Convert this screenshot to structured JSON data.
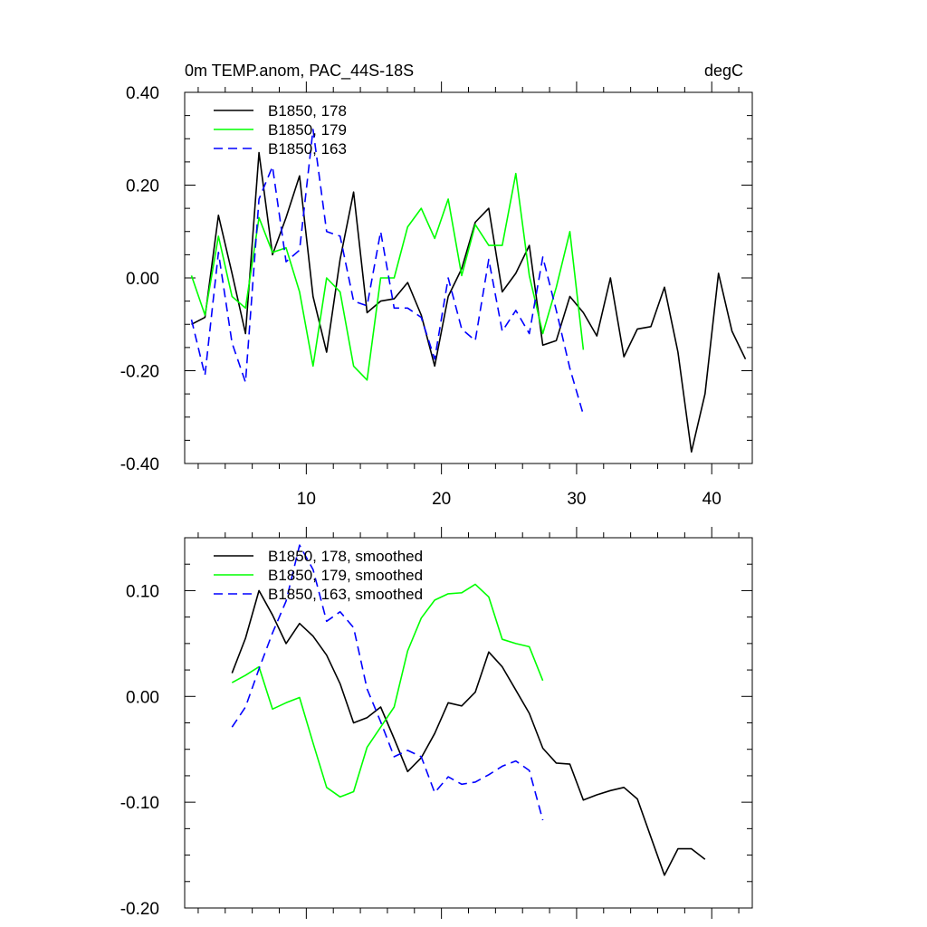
{
  "title_left": "0m TEMP.anom, PAC_44S-18S",
  "title_right": "degC",
  "chart_data": [
    {
      "type": "line",
      "xlim": [
        1,
        43
      ],
      "ylim": [
        -0.4,
        0.4
      ],
      "x_ticks": [
        10,
        20,
        30,
        40
      ],
      "x_tick_labels": [
        "10",
        "20",
        "30",
        "40"
      ],
      "y_ticks": [
        -0.4,
        -0.2,
        0.0,
        0.2,
        0.4
      ],
      "y_tick_labels": [
        "-0.40",
        "-0.20",
        "0.00",
        "0.20",
        "0.40"
      ],
      "legend_position": "top-left",
      "series": [
        {
          "name": "B1850, 178",
          "color": "#000000",
          "dash": "solid",
          "x": [
            1.5,
            2.5,
            3.5,
            4.5,
            5.5,
            6.5,
            7.5,
            8.5,
            9.5,
            10.5,
            11.5,
            12.5,
            13.5,
            14.5,
            15.5,
            16.5,
            17.5,
            18.5,
            19.5,
            20.5,
            21.5,
            22.5,
            23.5,
            24.5,
            25.5,
            26.5,
            27.5,
            28.5,
            29.5,
            30.5,
            31.5,
            32.5,
            33.5,
            34.5,
            35.5,
            36.5,
            37.5,
            38.5,
            39.5,
            40.5,
            41.5,
            42.5
          ],
          "values": [
            -0.1,
            -0.085,
            0.135,
            0.01,
            -0.12,
            0.27,
            0.05,
            0.13,
            0.22,
            -0.04,
            -0.16,
            0.04,
            0.185,
            -0.075,
            -0.05,
            -0.045,
            -0.01,
            -0.08,
            -0.19,
            -0.04,
            0.02,
            0.12,
            0.15,
            -0.03,
            0.01,
            0.07,
            -0.145,
            -0.135,
            -0.04,
            -0.075,
            -0.125,
            0.0,
            -0.17,
            -0.11,
            -0.105,
            -0.02,
            -0.16,
            -0.375,
            -0.25,
            0.01,
            -0.115,
            -0.175
          ]
        },
        {
          "name": "B1850, 179",
          "color": "#00ff00",
          "dash": "solid",
          "x": [
            1.5,
            2.5,
            3.5,
            4.5,
            5.5,
            6.5,
            7.5,
            8.5,
            9.5,
            10.5,
            11.5,
            12.5,
            13.5,
            14.5,
            15.5,
            16.5,
            17.5,
            18.5,
            19.5,
            20.5,
            21.5,
            22.5,
            23.5,
            24.5,
            25.5,
            26.5,
            27.5,
            28.5,
            29.5,
            30.5
          ],
          "values": [
            0.005,
            -0.08,
            0.09,
            -0.04,
            -0.065,
            0.13,
            0.055,
            0.065,
            -0.03,
            -0.19,
            0.0,
            -0.03,
            -0.19,
            -0.22,
            0.0,
            0.0,
            0.11,
            0.15,
            0.085,
            0.17,
            0.005,
            0.115,
            0.07,
            0.07,
            0.225,
            0.005,
            -0.12,
            -0.02,
            0.1,
            -0.155
          ]
        },
        {
          "name": "B1850, 163",
          "color": "#0000ff",
          "dash": "dashed",
          "x": [
            1.5,
            2.5,
            3.5,
            4.5,
            5.5,
            6.5,
            7.5,
            8.5,
            9.5,
            10.5,
            11.5,
            12.5,
            13.5,
            14.5,
            15.5,
            16.5,
            17.5,
            18.5,
            19.5,
            20.5,
            21.5,
            22.5,
            23.5,
            24.5,
            25.5,
            26.5,
            27.5,
            28.5,
            29.5,
            30.5
          ],
          "values": [
            -0.09,
            -0.21,
            0.055,
            -0.14,
            -0.225,
            0.17,
            0.24,
            0.035,
            0.06,
            0.32,
            0.1,
            0.09,
            -0.05,
            -0.06,
            0.1,
            -0.065,
            -0.065,
            -0.085,
            -0.175,
            0.0,
            -0.11,
            -0.135,
            0.04,
            -0.115,
            -0.07,
            -0.12,
            0.045,
            -0.07,
            -0.195,
            -0.295
          ]
        }
      ]
    },
    {
      "type": "line",
      "xlim": [
        1,
        43
      ],
      "ylim": [
        -0.2,
        0.15
      ],
      "x_ticks": [
        10,
        20,
        30,
        40
      ],
      "x_tick_labels": [],
      "y_ticks": [
        -0.2,
        -0.1,
        0.0,
        0.1
      ],
      "y_tick_labels": [
        "-0.20",
        "-0.10",
        "0.00",
        "0.10"
      ],
      "legend_position": "top-left",
      "series": [
        {
          "name": "B1850, 178, smoothed",
          "color": "#000000",
          "dash": "solid",
          "x": [
            4.5,
            5.5,
            6.5,
            7.5,
            8.5,
            9.5,
            10.5,
            11.5,
            12.5,
            13.5,
            14.5,
            15.5,
            16.5,
            17.5,
            18.5,
            19.5,
            20.5,
            21.5,
            22.5,
            23.5,
            24.5,
            25.5,
            26.5,
            27.5,
            28.5,
            29.5,
            30.5,
            31.5,
            32.5,
            33.5,
            34.5,
            35.5,
            36.5,
            37.5,
            38.5,
            39.5
          ],
          "values": [
            0.022,
            0.055,
            0.1,
            0.077,
            0.05,
            0.069,
            0.057,
            0.039,
            0.012,
            -0.025,
            -0.02,
            -0.01,
            -0.04,
            -0.071,
            -0.058,
            -0.035,
            -0.006,
            -0.009,
            0.004,
            0.042,
            0.028,
            0.006,
            -0.016,
            -0.049,
            -0.063,
            -0.064,
            -0.098,
            -0.093,
            -0.089,
            -0.086,
            -0.097,
            -0.133,
            -0.169,
            -0.144,
            -0.144,
            -0.154
          ]
        },
        {
          "name": "B1850, 179, smoothed",
          "color": "#00ff00",
          "dash": "solid",
          "x": [
            4.5,
            5.5,
            6.5,
            7.5,
            8.5,
            9.5,
            10.5,
            11.5,
            12.5,
            13.5,
            14.5,
            15.5,
            16.5,
            17.5,
            18.5,
            19.5,
            20.5,
            21.5,
            22.5,
            23.5,
            24.5,
            25.5,
            26.5,
            27.5
          ],
          "values": [
            0.013,
            0.02,
            0.028,
            -0.012,
            -0.006,
            -0.001,
            -0.044,
            -0.086,
            -0.095,
            -0.09,
            -0.048,
            -0.029,
            -0.01,
            0.043,
            0.074,
            0.091,
            0.097,
            0.098,
            0.106,
            0.094,
            0.054,
            0.05,
            0.047,
            0.015
          ]
        },
        {
          "name": "B1850, 163, smoothed",
          "color": "#0000ff",
          "dash": "dashed",
          "x": [
            4.5,
            5.5,
            6.5,
            7.5,
            8.5,
            9.5,
            10.5,
            11.5,
            12.5,
            13.5,
            14.5,
            15.5,
            16.5,
            17.5,
            18.5,
            19.5,
            20.5,
            21.5,
            22.5,
            23.5,
            24.5,
            25.5,
            26.5,
            27.5
          ],
          "values": [
            -0.029,
            -0.01,
            0.026,
            0.06,
            0.09,
            0.143,
            0.12,
            0.071,
            0.08,
            0.065,
            0.007,
            -0.024,
            -0.057,
            -0.051,
            -0.057,
            -0.091,
            -0.076,
            -0.083,
            -0.081,
            -0.074,
            -0.066,
            -0.061,
            -0.07,
            -0.117
          ]
        }
      ]
    }
  ]
}
